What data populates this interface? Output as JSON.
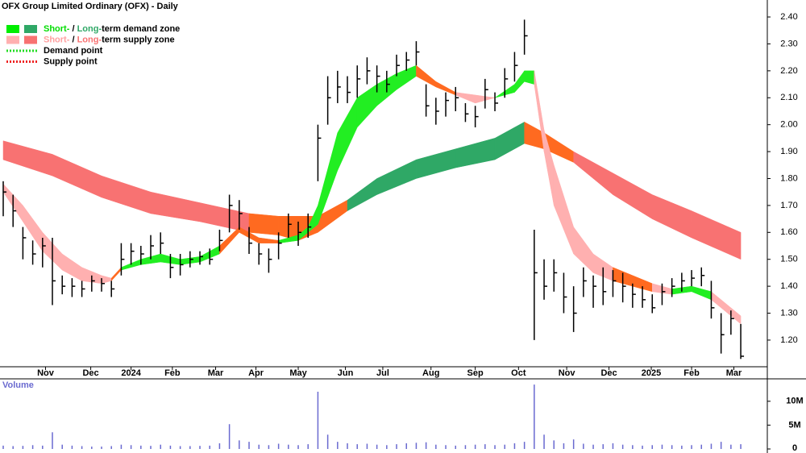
{
  "chart_data": [
    {
      "type": "hlc",
      "title": "OFX Group Limited Ordinary (OFX) - Daily",
      "color": "#000000",
      "x": [
        0,
        1,
        2,
        3,
        4,
        5,
        6,
        7,
        8,
        9,
        10,
        11,
        12,
        13,
        14,
        15,
        16,
        17,
        18,
        19,
        20,
        21,
        22,
        23,
        24,
        25,
        26,
        27,
        28,
        29,
        30,
        31,
        32,
        33,
        34,
        35,
        36,
        37,
        38,
        39,
        40,
        41,
        42,
        43,
        44,
        45,
        46,
        47,
        48,
        49,
        50,
        51,
        52,
        53,
        54,
        55,
        56,
        57,
        58,
        59,
        60,
        61,
        62,
        63,
        64,
        65,
        66,
        67,
        68,
        69,
        70,
        71,
        72,
        73,
        74,
        75
      ],
      "high": [
        1.79,
        1.74,
        1.62,
        1.57,
        1.58,
        1.58,
        1.44,
        1.43,
        1.42,
        1.44,
        1.43,
        1.42,
        1.56,
        1.56,
        1.55,
        1.59,
        1.6,
        1.52,
        1.52,
        1.53,
        1.53,
        1.54,
        1.61,
        1.74,
        1.72,
        1.62,
        1.56,
        1.54,
        1.6,
        1.67,
        1.64,
        1.67,
        2.0,
        2.18,
        2.2,
        2.18,
        2.22,
        2.25,
        2.22,
        2.2,
        2.26,
        2.27,
        2.31,
        2.15,
        2.1,
        2.12,
        2.14,
        2.08,
        2.07,
        2.17,
        2.12,
        2.21,
        2.27,
        2.39,
        1.61,
        1.5,
        1.5,
        1.45,
        1.4,
        1.47,
        1.44,
        1.47,
        1.46,
        1.45,
        1.41,
        1.4,
        1.37,
        1.41,
        1.43,
        1.45,
        1.46,
        1.47,
        1.42,
        1.3,
        1.31,
        1.26
      ],
      "low": [
        1.66,
        1.62,
        1.5,
        1.48,
        1.47,
        1.33,
        1.37,
        1.36,
        1.36,
        1.38,
        1.38,
        1.36,
        1.44,
        1.48,
        1.48,
        1.5,
        1.52,
        1.43,
        1.44,
        1.47,
        1.48,
        1.48,
        1.53,
        1.6,
        1.61,
        1.52,
        1.48,
        1.45,
        1.5,
        1.58,
        1.55,
        1.58,
        1.79,
        2.0,
        2.08,
        2.08,
        2.1,
        2.15,
        2.12,
        2.12,
        2.18,
        2.2,
        2.22,
        2.03,
        2.0,
        2.03,
        2.05,
        2.01,
        1.99,
        2.06,
        2.05,
        2.1,
        2.16,
        2.26,
        1.2,
        1.35,
        1.38,
        1.3,
        1.23,
        1.36,
        1.32,
        1.33,
        1.36,
        1.34,
        1.32,
        1.32,
        1.3,
        1.33,
        1.36,
        1.38,
        1.4,
        1.4,
        1.28,
        1.15,
        1.22,
        1.13
      ],
      "close": [
        1.75,
        1.68,
        1.58,
        1.52,
        1.55,
        1.42,
        1.4,
        1.4,
        1.39,
        1.42,
        1.41,
        1.39,
        1.5,
        1.53,
        1.52,
        1.55,
        1.56,
        1.47,
        1.48,
        1.5,
        1.51,
        1.5,
        1.57,
        1.7,
        1.67,
        1.56,
        1.52,
        1.5,
        1.56,
        1.63,
        1.6,
        1.62,
        1.95,
        2.1,
        2.14,
        2.12,
        2.17,
        2.2,
        2.18,
        2.15,
        2.22,
        2.24,
        2.27,
        2.07,
        2.05,
        2.09,
        2.1,
        2.04,
        2.03,
        2.13,
        2.08,
        2.17,
        2.22,
        2.33,
        1.45,
        1.4,
        1.45,
        1.36,
        1.3,
        1.42,
        1.4,
        1.38,
        1.42,
        1.4,
        1.37,
        1.35,
        1.32,
        1.38,
        1.4,
        1.42,
        1.43,
        1.44,
        1.32,
        1.22,
        1.28,
        1.14
      ],
      "zones": [
        {
          "x": [
            0,
            5,
            10,
            15,
            20,
            25,
            28,
            30,
            32,
            35,
            38,
            42,
            46,
            50,
            53,
            55,
            58,
            62,
            66,
            70,
            75
          ],
          "upper": [
            1.94,
            1.89,
            1.81,
            1.75,
            1.71,
            1.67,
            1.66,
            1.66,
            1.66,
            1.72,
            1.8,
            1.87,
            1.91,
            1.95,
            2.01,
            1.97,
            1.9,
            1.82,
            1.74,
            1.68,
            1.6
          ],
          "lower": [
            1.87,
            1.81,
            1.73,
            1.67,
            1.64,
            1.6,
            1.59,
            1.57,
            1.6,
            1.68,
            1.74,
            1.8,
            1.84,
            1.87,
            1.93,
            1.91,
            1.86,
            1.74,
            1.65,
            1.58,
            1.5
          ],
          "colors": [
            "#f87272",
            "#f87272",
            "#f87272",
            "#f87272",
            "#f87272",
            "#ff6a20",
            "#ff6a20",
            "#ff6a20",
            "#ff6a20",
            "#2fa866",
            "#2fa866",
            "#2fa866",
            "#2fa866",
            "#2fa866",
            "#ff6a20",
            "#ff6a20",
            "#f87272",
            "#f87272",
            "#f87272",
            "#f87272"
          ]
        },
        {
          "x": [
            0,
            2,
            4,
            6,
            8,
            10,
            11,
            12,
            14,
            16,
            18,
            20,
            22,
            24,
            26,
            28,
            30,
            31,
            32,
            34,
            36,
            38,
            40,
            42,
            44,
            46,
            48,
            50,
            52,
            53,
            54,
            55,
            56,
            58,
            60,
            62,
            64,
            66,
            68,
            70,
            72,
            74,
            75
          ],
          "upper": [
            1.78,
            1.7,
            1.6,
            1.52,
            1.47,
            1.44,
            1.43,
            1.47,
            1.5,
            1.52,
            1.5,
            1.51,
            1.55,
            1.62,
            1.58,
            1.57,
            1.59,
            1.62,
            1.7,
            1.97,
            2.1,
            2.15,
            2.19,
            2.22,
            2.16,
            2.12,
            2.11,
            2.1,
            2.15,
            2.2,
            2.2,
            1.98,
            1.85,
            1.62,
            1.52,
            1.47,
            1.44,
            1.41,
            1.39,
            1.4,
            1.38,
            1.32,
            1.29
          ],
          "lower": [
            1.75,
            1.64,
            1.53,
            1.46,
            1.42,
            1.41,
            1.42,
            1.46,
            1.48,
            1.49,
            1.48,
            1.49,
            1.52,
            1.6,
            1.56,
            1.56,
            1.57,
            1.6,
            1.63,
            1.83,
            1.99,
            2.07,
            2.13,
            2.18,
            2.14,
            2.11,
            2.08,
            2.1,
            2.12,
            2.16,
            2.15,
            1.9,
            1.7,
            1.52,
            1.45,
            1.42,
            1.4,
            1.38,
            1.37,
            1.38,
            1.35,
            1.29,
            1.26
          ],
          "colors": [
            "#ffb0b0",
            "#ffb0b0",
            "#ffb0b0",
            "#ffb0b0",
            "#ffb0b0",
            "#ffb0b0",
            "#ff6a20",
            "#22ee22",
            "#22ee22",
            "#22ee22",
            "#22ee22",
            "#22ee22",
            "#ff6a20",
            "#ff6a20",
            "#ff6a20",
            "#22ee22",
            "#22ee22",
            "#22ee22",
            "#22ee22",
            "#22ee22",
            "#22ee22",
            "#22ee22",
            "#22ee22",
            "#ff6a20",
            "#ff6a20",
            "#ffb0b0",
            "#ffb0b0",
            "#22ee22",
            "#22ee22",
            "#22ee22",
            "#ffb0b0",
            "#ffb0b0",
            "#ffb0b0",
            "#ffb0b0",
            "#ffb0b0",
            "#ff6a20",
            "#ff6a20",
            "#ffb0b0",
            "#22ee22",
            "#22ee22",
            "#ffb0b0",
            "#ffb0b0"
          ]
        }
      ],
      "legend": [
        {
          "swatch": [
            "#00ee00",
            "#2fa866"
          ],
          "style": "box",
          "parts": [
            "Short-",
            " / ",
            "Long-",
            "term demand zone"
          ],
          "part_colors": [
            "#00dd00",
            "#000000",
            "#2fa866",
            "#000000"
          ]
        },
        {
          "swatch": [
            "#ffb0b0",
            "#f87272"
          ],
          "style": "box",
          "parts": [
            "Short-",
            " / ",
            "Long-",
            "term supply zone"
          ],
          "part_colors": [
            "#ffa0a0",
            "#000000",
            "#f87272",
            "#000000"
          ]
        },
        {
          "swatch": [
            "#22dd22"
          ],
          "style": "dots",
          "parts": [
            "Demand point"
          ],
          "part_colors": [
            "#000000"
          ]
        },
        {
          "swatch": [
            "#ee2222"
          ],
          "style": "dots",
          "parts": [
            "Supply point"
          ],
          "part_colors": [
            "#000000"
          ]
        }
      ],
      "xlim": [
        0,
        77.7
      ],
      "xticks": [
        {
          "value": 4.3,
          "label": "Nov"
        },
        {
          "value": 8.9,
          "label": "Dec"
        },
        {
          "value": 13,
          "label": "2024"
        },
        {
          "value": 17.2,
          "label": "Feb"
        },
        {
          "value": 21.6,
          "label": "Mar"
        },
        {
          "value": 25.7,
          "label": "Apr"
        },
        {
          "value": 30,
          "label": "May"
        },
        {
          "value": 34.8,
          "label": "Jun"
        },
        {
          "value": 38.6,
          "label": "Jul"
        },
        {
          "value": 43.5,
          "label": "Aug"
        },
        {
          "value": 48,
          "label": "Sep"
        },
        {
          "value": 52.4,
          "label": "Oct"
        },
        {
          "value": 57.3,
          "label": "Nov"
        },
        {
          "value": 61.6,
          "label": "Dec"
        },
        {
          "value": 65.9,
          "label": "2025"
        },
        {
          "value": 70,
          "label": "Feb"
        },
        {
          "value": 74.3,
          "label": "Mar"
        }
      ],
      "ylim": [
        1.101,
        2.463
      ],
      "yticks": [
        {
          "value": 1.2,
          "label": "1.20"
        },
        {
          "value": 1.3,
          "label": "1.30"
        },
        {
          "value": 1.4,
          "label": "1.40"
        },
        {
          "value": 1.5,
          "label": "1.50"
        },
        {
          "value": 1.6,
          "label": "1.60"
        },
        {
          "value": 1.7,
          "label": "1.70"
        },
        {
          "value": 1.8,
          "label": "1.80"
        },
        {
          "value": 1.9,
          "label": "1.90"
        },
        {
          "value": 2.0,
          "label": "2.00"
        },
        {
          "value": 2.1,
          "label": "2.10"
        },
        {
          "value": 2.2,
          "label": "2.20"
        },
        {
          "value": 2.3,
          "label": "2.30"
        },
        {
          "value": 2.4,
          "label": "2.40"
        }
      ]
    },
    {
      "type": "bar",
      "title": "Volume",
      "color": "#6a6ad0",
      "x": [
        0,
        1,
        2,
        3,
        4,
        5,
        6,
        7,
        8,
        9,
        10,
        11,
        12,
        13,
        14,
        15,
        16,
        17,
        18,
        19,
        20,
        21,
        22,
        23,
        24,
        25,
        26,
        27,
        28,
        29,
        30,
        31,
        32,
        33,
        34,
        35,
        36,
        37,
        38,
        39,
        40,
        41,
        42,
        43,
        44,
        45,
        46,
        47,
        48,
        49,
        50,
        51,
        52,
        53,
        54,
        55,
        56,
        57,
        58,
        59,
        60,
        61,
        62,
        63,
        64,
        65,
        66,
        67,
        68,
        69,
        70,
        71,
        72,
        73,
        74,
        75
      ],
      "values": [
        700000,
        600000,
        650000,
        800000,
        700000,
        3500000,
        900000,
        700000,
        600000,
        500000,
        500000,
        600000,
        900000,
        800000,
        700000,
        650000,
        900000,
        700000,
        600000,
        600000,
        650000,
        700000,
        1200000,
        5200000,
        1800000,
        1500000,
        900000,
        800000,
        1100000,
        900000,
        800000,
        1000000,
        12000000,
        3000000,
        1500000,
        1200000,
        1000000,
        1100000,
        900000,
        800000,
        1000000,
        1200000,
        1300000,
        1400000,
        900000,
        800000,
        700000,
        800000,
        900000,
        1000000,
        800000,
        900000,
        1200000,
        1500000,
        13500000,
        3000000,
        1800000,
        1200000,
        2000000,
        1100000,
        900000,
        1000000,
        1200000,
        900000,
        800000,
        700000,
        800000,
        900000,
        800000,
        700000,
        800000,
        900000,
        1100000,
        1500000,
        900000,
        1000000
      ],
      "xlim": [
        0,
        77.7
      ],
      "ylim": [
        0,
        14700000
      ],
      "yticks": [
        0,
        {
          "value": 5000000,
          "label": "5M"
        },
        {
          "value": 10000000,
          "label": "10M"
        }
      ]
    }
  ]
}
